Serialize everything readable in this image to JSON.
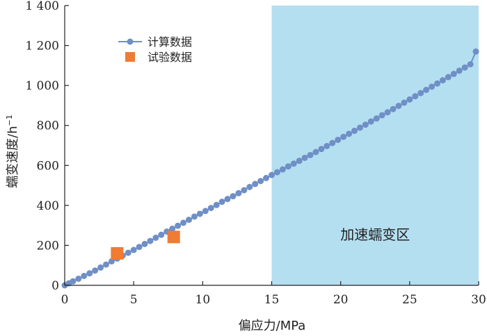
{
  "chart_data": {
    "type": "scatter",
    "xlabel": "偏应力/MPa",
    "ylabel": "蠕变速度/h",
    "ylabel_sup": "−1",
    "xlim": [
      0,
      30
    ],
    "ylim": [
      0,
      1400
    ],
    "xticks": [
      0,
      5,
      10,
      15,
      20,
      25,
      30
    ],
    "yticks": [
      0,
      200,
      400,
      600,
      800,
      1000,
      1200,
      1400
    ],
    "ytick_labels": [
      "0",
      "200",
      "400",
      "600",
      "800",
      "1 000",
      "1 200",
      "1 400"
    ],
    "grid": false,
    "legend_position": "top-left",
    "series": [
      {
        "name": "计算数据",
        "style": "line-circle",
        "color": "#6f8fc6",
        "x": [
          0,
          0.3,
          0.6,
          1.0,
          1.4,
          1.8,
          2.2,
          2.6,
          3.0,
          3.4,
          3.8,
          4.2,
          4.6,
          5.0,
          5.4,
          5.8,
          6.2,
          6.6,
          7.0,
          7.4,
          7.8,
          8.2,
          8.6,
          9.0,
          9.4,
          9.8,
          10.2,
          10.6,
          11.0,
          11.4,
          11.8,
          12.2,
          12.6,
          13.0,
          13.4,
          13.8,
          14.2,
          14.6,
          15.0,
          15.4,
          15.8,
          16.2,
          16.6,
          17.0,
          17.4,
          17.8,
          18.2,
          18.6,
          19.0,
          19.4,
          19.8,
          20.2,
          20.6,
          21.0,
          21.4,
          21.8,
          22.2,
          22.6,
          23.0,
          23.4,
          23.8,
          24.2,
          24.6,
          25.0,
          25.4,
          25.8,
          26.2,
          26.6,
          27.0,
          27.4,
          27.8,
          28.2,
          28.6,
          29.0,
          29.4,
          29.8
        ],
        "y": [
          0,
          10,
          20,
          33,
          47,
          60,
          74,
          89,
          104,
          120,
          134,
          149,
          163,
          177,
          192,
          207,
          222,
          238,
          253,
          269,
          283,
          298,
          313,
          328,
          344,
          358,
          372,
          387,
          402,
          418,
          432,
          446,
          461,
          476,
          492,
          507,
          522,
          537,
          552,
          566,
          580,
          595,
          609,
          623,
          638,
          652,
          667,
          682,
          697,
          712,
          728,
          743,
          758,
          773,
          789,
          804,
          820,
          835,
          851,
          866,
          882,
          898,
          914,
          930,
          946,
          962,
          978,
          994,
          1010,
          1026,
          1042,
          1058,
          1074,
          1090,
          1106,
          1170
        ]
      },
      {
        "name": "试验数据",
        "style": "square",
        "color": "#f07b33",
        "x": [
          3.8,
          7.9
        ],
        "y": [
          160,
          242
        ]
      }
    ],
    "annotations": [
      {
        "text": "加速蠕变区",
        "x_range": [
          15,
          30
        ],
        "fill": "#b4dff0"
      }
    ]
  }
}
